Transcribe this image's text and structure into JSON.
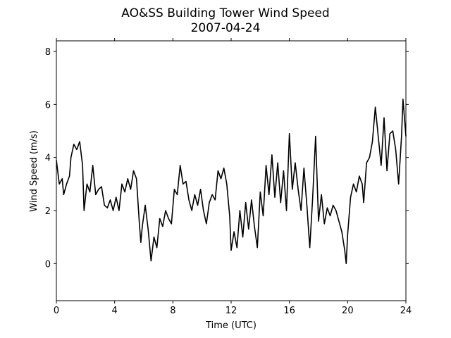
{
  "chart_data": {
    "type": "line",
    "title": "AO&SS Building Tower Wind Speed",
    "subtitle": "2007-04-24",
    "x_label": "Time (UTC)",
    "y_label": "Wind Speed (m/s)",
    "xlim": [
      0,
      24
    ],
    "xticks": [
      0,
      4,
      8,
      12,
      16,
      20,
      24
    ],
    "ylim": [
      -1.4,
      8.4
    ],
    "yticks": [
      0,
      2,
      4,
      6,
      8
    ],
    "grid": false,
    "series": [
      {
        "color": "#000000",
        "x": [
          0,
          0.2,
          0.4,
          0.5,
          0.7,
          0.9,
          1.0,
          1.2,
          1.4,
          1.6,
          1.8,
          1.9,
          2.1,
          2.3,
          2.5,
          2.7,
          2.9,
          3.1,
          3.3,
          3.5,
          3.7,
          3.9,
          4.1,
          4.3,
          4.5,
          4.7,
          4.9,
          5.1,
          5.3,
          5.5,
          5.7,
          5.8,
          5.9,
          6.1,
          6.3,
          6.5,
          6.7,
          6.9,
          7.1,
          7.3,
          7.5,
          7.7,
          7.9,
          8.1,
          8.3,
          8.5,
          8.7,
          8.9,
          9.1,
          9.3,
          9.5,
          9.7,
          9.9,
          10.1,
          10.3,
          10.5,
          10.7,
          10.9,
          11.1,
          11.3,
          11.5,
          11.7,
          11.9,
          12.0,
          12.2,
          12.4,
          12.6,
          12.8,
          13.0,
          13.2,
          13.4,
          13.6,
          13.8,
          14.0,
          14.2,
          14.4,
          14.6,
          14.8,
          15.0,
          15.2,
          15.4,
          15.6,
          15.8,
          16.0,
          16.2,
          16.4,
          16.6,
          16.8,
          17.0,
          17.2,
          17.4,
          17.6,
          17.8,
          18.0,
          18.2,
          18.4,
          18.6,
          18.8,
          19.0,
          19.2,
          19.4,
          19.6,
          19.8,
          19.9,
          20.0,
          20.2,
          20.4,
          20.6,
          20.8,
          21.0,
          21.1,
          21.3,
          21.5,
          21.7,
          21.9,
          22.1,
          22.3,
          22.5,
          22.7,
          22.9,
          23.1,
          23.3,
          23.5,
          23.7,
          23.8,
          24.0
        ],
        "values": [
          3.9,
          3.0,
          3.2,
          2.6,
          3.0,
          3.3,
          4.0,
          4.5,
          4.3,
          4.6,
          3.7,
          2.0,
          3.0,
          2.7,
          3.7,
          2.6,
          2.8,
          2.9,
          2.2,
          2.1,
          2.4,
          2.0,
          2.5,
          2.0,
          3.0,
          2.7,
          3.2,
          2.8,
          3.5,
          3.2,
          1.5,
          0.8,
          1.4,
          2.2,
          1.3,
          0.1,
          1.0,
          0.6,
          1.7,
          1.4,
          2.0,
          1.7,
          1.5,
          2.8,
          2.6,
          3.7,
          3.0,
          3.1,
          2.4,
          2.0,
          2.6,
          2.2,
          2.8,
          2.0,
          1.5,
          2.3,
          2.6,
          2.4,
          3.5,
          3.2,
          3.6,
          3.0,
          1.8,
          0.5,
          1.2,
          0.6,
          2.0,
          1.0,
          2.3,
          1.3,
          2.4,
          1.4,
          0.6,
          2.7,
          1.8,
          3.7,
          2.6,
          4.1,
          2.5,
          3.8,
          2.3,
          3.5,
          2.0,
          4.9,
          2.8,
          3.8,
          2.8,
          2.0,
          3.6,
          2.2,
          0.6,
          2.5,
          4.8,
          1.6,
          2.6,
          1.5,
          2.1,
          1.8,
          2.2,
          2.0,
          1.6,
          1.2,
          0.5,
          0.0,
          1.1,
          2.5,
          3.0,
          2.7,
          3.3,
          3.0,
          2.3,
          3.8,
          4.0,
          4.6,
          5.9,
          4.8,
          3.7,
          5.5,
          3.5,
          4.9,
          5.0,
          4.3,
          3.0,
          4.8,
          6.2,
          4.8
        ]
      }
    ]
  }
}
